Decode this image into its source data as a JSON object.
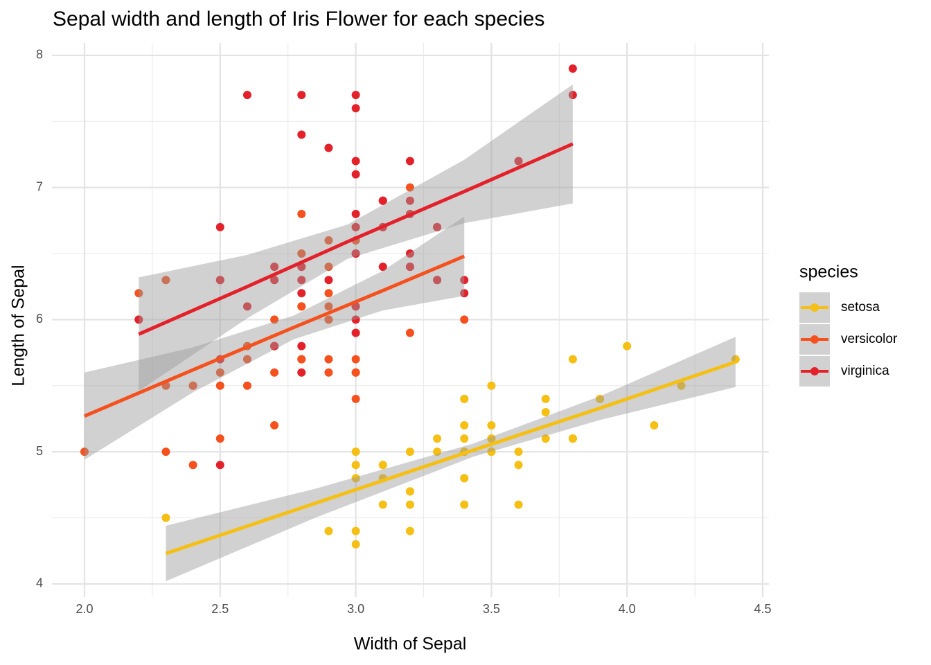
{
  "chart_data": {
    "type": "scatter",
    "title": "Sepal width and length of Iris Flower for each species",
    "x_label": "Width of Sepal",
    "y_label": "Length of Sepal",
    "legend_title": "species",
    "legend_position": "right",
    "grid": true,
    "xlim": [
      1.88,
      4.523
    ],
    "ylim": [
      3.9,
      8.094
    ],
    "xticks": [
      {
        "value": 2.0,
        "label": "2.0"
      },
      2.5,
      {
        "value": 3.0,
        "label": "3.0"
      },
      3.5,
      {
        "value": 4.0,
        "label": "4.0"
      },
      4.5
    ],
    "yticks": [
      4,
      5,
      6,
      7,
      8
    ],
    "xminorticks": [
      2.25,
      2.75,
      3.25,
      3.75,
      4.25
    ],
    "yminorticks": [
      4.5,
      5.5,
      6.5,
      7.5
    ],
    "band_color": "#999999",
    "series": [
      {
        "name": "setosa",
        "color": "#F5BF14",
        "x": [
          3.5,
          3.0,
          3.2,
          3.1,
          3.6,
          3.9,
          3.4,
          3.4,
          2.9,
          3.1,
          3.7,
          3.4,
          3.0,
          3.0,
          4.0,
          4.4,
          3.9,
          3.5,
          3.8,
          3.8,
          3.4,
          3.7,
          3.6,
          3.3,
          3.4,
          3.0,
          3.4,
          3.5,
          3.4,
          3.2,
          3.1,
          3.4,
          4.1,
          4.2,
          3.1,
          3.2,
          3.5,
          3.6,
          3.0,
          3.4,
          3.5,
          2.3,
          3.2,
          3.5,
          3.8,
          3.0,
          3.8,
          3.2,
          3.7,
          3.3
        ],
        "values": [
          5.1,
          4.9,
          4.7,
          4.6,
          5.0,
          5.4,
          4.6,
          5.0,
          4.4,
          4.9,
          5.4,
          4.8,
          4.8,
          4.3,
          5.8,
          5.7,
          5.4,
          5.1,
          5.7,
          5.1,
          5.4,
          5.1,
          4.6,
          5.1,
          4.8,
          5.0,
          5.0,
          5.2,
          5.2,
          4.7,
          4.8,
          5.4,
          5.2,
          5.5,
          4.9,
          5.0,
          5.5,
          4.9,
          4.4,
          5.1,
          5.0,
          4.5,
          4.4,
          5.0,
          5.1,
          4.8,
          5.1,
          4.6,
          5.3,
          5.0
        ],
        "fit": {
          "x": [
            2.3,
            2.85,
            3.43,
            3.9,
            4.4
          ],
          "y": [
            4.23,
            4.61,
            5.01,
            5.33,
            5.68
          ],
          "lower": [
            4.02,
            4.5,
            4.96,
            5.24,
            5.49
          ],
          "upper": [
            4.44,
            4.72,
            5.06,
            5.42,
            5.87
          ]
        }
      },
      {
        "name": "versicolor",
        "color": "#F4511E",
        "x": [
          3.2,
          3.2,
          3.1,
          2.3,
          2.8,
          2.8,
          3.3,
          2.4,
          2.9,
          2.7,
          2.0,
          3.0,
          2.2,
          2.9,
          2.9,
          3.1,
          3.0,
          2.7,
          2.2,
          2.5,
          3.2,
          2.8,
          2.5,
          2.8,
          2.9,
          3.0,
          2.8,
          3.0,
          2.9,
          2.6,
          2.4,
          2.4,
          2.7,
          2.7,
          3.0,
          3.4,
          3.1,
          2.3,
          3.0,
          2.5,
          2.6,
          3.0,
          2.6,
          2.3,
          2.7,
          3.0,
          2.9,
          2.9,
          2.5,
          2.8
        ],
        "values": [
          7.0,
          6.4,
          6.9,
          5.5,
          6.5,
          5.7,
          6.3,
          4.9,
          6.6,
          5.2,
          5.0,
          5.9,
          6.0,
          6.1,
          5.6,
          6.7,
          5.6,
          5.8,
          6.2,
          5.6,
          5.9,
          6.1,
          6.3,
          6.1,
          6.4,
          6.6,
          6.8,
          6.7,
          6.0,
          5.7,
          5.5,
          5.5,
          5.8,
          6.0,
          5.4,
          6.0,
          6.7,
          6.3,
          5.6,
          5.5,
          5.5,
          6.1,
          5.8,
          5.0,
          5.6,
          5.7,
          5.7,
          6.2,
          5.1,
          5.7
        ],
        "fit": {
          "x": [
            2.0,
            2.4,
            2.77,
            3.1,
            3.4
          ],
          "y": [
            5.27,
            5.62,
            5.94,
            6.22,
            6.48
          ],
          "lower": [
            4.94,
            5.45,
            5.85,
            6.07,
            6.18
          ],
          "upper": [
            5.6,
            5.79,
            6.03,
            6.37,
            6.78
          ]
        }
      },
      {
        "name": "virginica",
        "color": "#E3212A",
        "x": [
          3.3,
          2.7,
          3.0,
          2.9,
          3.0,
          3.0,
          2.5,
          2.9,
          2.5,
          3.6,
          3.2,
          2.7,
          3.0,
          2.5,
          2.8,
          3.2,
          3.0,
          3.8,
          2.6,
          2.2,
          3.2,
          2.8,
          2.8,
          2.7,
          3.3,
          3.2,
          2.8,
          3.0,
          2.8,
          3.0,
          2.8,
          3.8,
          2.8,
          2.8,
          2.6,
          3.0,
          3.4,
          3.1,
          3.0,
          3.1,
          3.1,
          3.1,
          2.7,
          3.2,
          3.3,
          3.0,
          2.5,
          3.0,
          3.4,
          3.0
        ],
        "values": [
          6.3,
          5.8,
          7.1,
          6.3,
          6.5,
          7.6,
          4.9,
          7.3,
          6.7,
          7.2,
          6.5,
          6.4,
          6.8,
          5.7,
          5.8,
          6.4,
          6.5,
          7.7,
          7.7,
          6.0,
          6.9,
          5.6,
          7.7,
          6.3,
          6.7,
          7.2,
          6.2,
          6.1,
          6.4,
          7.2,
          7.4,
          7.9,
          6.4,
          6.3,
          6.1,
          7.7,
          6.3,
          6.4,
          6.0,
          6.9,
          6.7,
          6.9,
          5.8,
          6.8,
          6.7,
          6.7,
          6.3,
          6.5,
          6.2,
          5.9
        ],
        "fit": {
          "x": [
            2.2,
            2.6,
            2.97,
            3.4,
            3.8
          ],
          "y": [
            5.89,
            6.25,
            6.59,
            6.97,
            7.33
          ],
          "lower": [
            5.46,
            6.01,
            6.46,
            6.73,
            6.88
          ],
          "upper": [
            6.32,
            6.49,
            6.72,
            7.21,
            7.78
          ]
        }
      }
    ]
  }
}
